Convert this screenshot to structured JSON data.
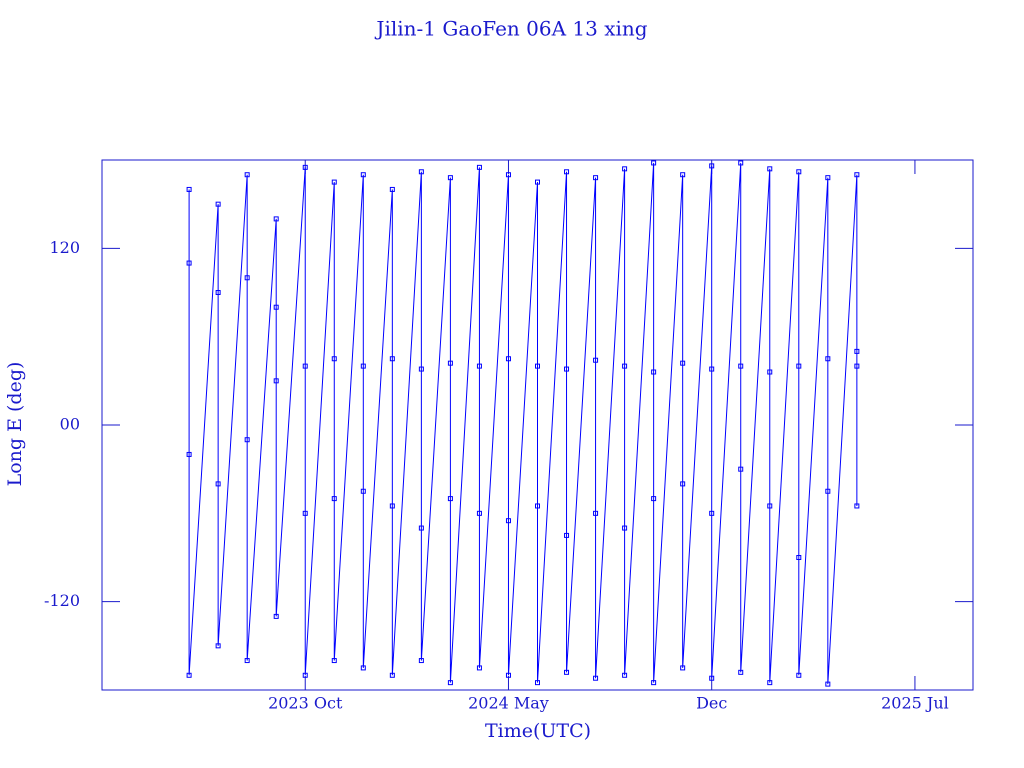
{
  "chart_data": {
    "type": "line",
    "title": "Jilin-1 GaoFen 06A 13 xing",
    "x_label": "Time(UTC)",
    "y_label": "Long E (deg)",
    "x": [
      "2023-06",
      "2023-06",
      "2023-06",
      "2023-06",
      "2023-07",
      "2023-07",
      "2023-07",
      "2023-07",
      "2023-08",
      "2023-08",
      "2023-08",
      "2023-08",
      "2023-09",
      "2023-09",
      "2023-09",
      "2023-09",
      "2023-10",
      "2023-10",
      "2023-10",
      "2023-10",
      "2023-11",
      "2023-11",
      "2023-11",
      "2023-11",
      "2023-12",
      "2023-12",
      "2023-12",
      "2023-12",
      "2024-01",
      "2024-01",
      "2024-01",
      "2024-01",
      "2024-02",
      "2024-02",
      "2024-02",
      "2024-02",
      "2024-03",
      "2024-03",
      "2024-03",
      "2024-03",
      "2024-04",
      "2024-04",
      "2024-04",
      "2024-04",
      "2024-05",
      "2024-05",
      "2024-05",
      "2024-05",
      "2024-06",
      "2024-06",
      "2024-06",
      "2024-06",
      "2024-07",
      "2024-07",
      "2024-07",
      "2024-07",
      "2024-08",
      "2024-08",
      "2024-08",
      "2024-08",
      "2024-09",
      "2024-09",
      "2024-09",
      "2024-09",
      "2024-10",
      "2024-10",
      "2024-10",
      "2024-10",
      "2024-11",
      "2024-11",
      "2024-11",
      "2024-11",
      "2024-12",
      "2024-12",
      "2024-12",
      "2024-12",
      "2025-01",
      "2025-01",
      "2025-01",
      "2025-01",
      "2025-02",
      "2025-02",
      "2025-02",
      "2025-02",
      "2025-03",
      "2025-03",
      "2025-03",
      "2025-03",
      "2025-04",
      "2025-04",
      "2025-04",
      "2025-04",
      "2025-05",
      "2025-05",
      "2025-05",
      "2025-05"
    ],
    "series": [
      {
        "color": "#0000ff",
        "values": [
          160,
          -20,
          110,
          -170,
          150,
          -40,
          90,
          -150,
          170,
          -10,
          100,
          -160,
          140,
          30,
          80,
          -130,
          175,
          40,
          -60,
          -170,
          165,
          45,
          -50,
          -160,
          170,
          40,
          -45,
          -165,
          160,
          45,
          -55,
          -170,
          172,
          38,
          -70,
          -160,
          168,
          42,
          -50,
          -175,
          175,
          40,
          -60,
          -165,
          170,
          45,
          -65,
          -170,
          165,
          40,
          -55,
          -175,
          172,
          38,
          -75,
          -168,
          168,
          44,
          -60,
          -172,
          174,
          40,
          -70,
          -170,
          178,
          36,
          -50,
          -175,
          170,
          42,
          -40,
          -165,
          176,
          38,
          -60,
          -172,
          178,
          40,
          -30,
          -168,
          174,
          36,
          -55,
          -175,
          172,
          40,
          -90,
          -170,
          168,
          45,
          -45,
          -176,
          170,
          50,
          -55,
          40
        ]
      }
    ],
    "xlim": [
      "2023-03",
      "2025-09"
    ],
    "xticks": [
      {
        "value": "2023-10",
        "label": "2023 Oct"
      },
      {
        "value": "2024-05",
        "label": "2024 May"
      },
      {
        "value": "2024-12",
        "label": "Dec"
      },
      {
        "value": "2025-07",
        "label": "2025 Jul"
      }
    ],
    "ylim": [
      -180,
      180
    ],
    "yticks": [
      -120,
      {
        "value": 0,
        "label": "00"
      },
      120
    ]
  }
}
